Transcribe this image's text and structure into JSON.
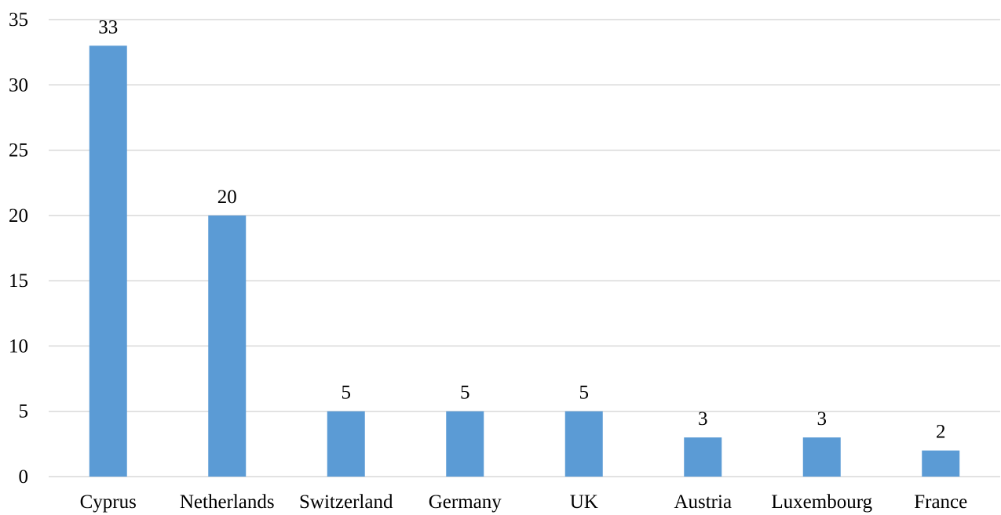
{
  "chart_data": {
    "type": "bar",
    "categories": [
      "Cyprus",
      "Netherlands",
      "Switzerland",
      "Germany",
      "UK",
      "Austria",
      "Luxembourg",
      "France"
    ],
    "values": [
      33,
      20,
      5,
      5,
      5,
      3,
      3,
      2
    ],
    "data_labels": [
      "33",
      "20",
      "5",
      "5",
      "5",
      "3",
      "3",
      "2"
    ],
    "yticks": [
      0,
      5,
      10,
      15,
      20,
      25,
      30,
      35
    ],
    "ylim": [
      0,
      35
    ],
    "title": "",
    "xlabel": "",
    "ylabel": "",
    "grid": true,
    "legend": "none",
    "bar_color": "#5b9bd5"
  }
}
